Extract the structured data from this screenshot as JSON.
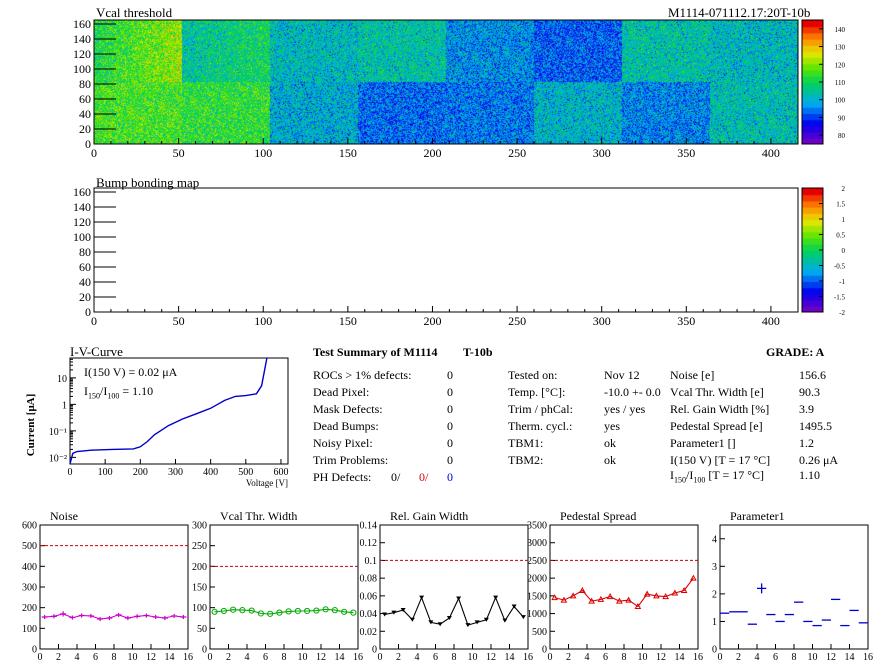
{
  "header": {
    "module_id": "M1114-071112.17:20T-10b"
  },
  "vcal_map": {
    "title": "Vcal threshold",
    "x_ticks": [
      "0",
      "50",
      "100",
      "150",
      "200",
      "250",
      "300",
      "350",
      "400"
    ],
    "y_ticks": [
      "0",
      "20",
      "40",
      "60",
      "80",
      "100",
      "120",
      "140",
      "160"
    ],
    "palette_ticks": [
      "80",
      "90",
      "100",
      "110",
      "120",
      "130",
      "140"
    ],
    "zlim": [
      78,
      143
    ],
    "roc_means": [
      [
        112,
        105,
        103,
        105,
        98,
        94,
        105,
        103
      ],
      [
        116,
        114,
        101,
        95,
        96,
        102,
        97,
        104
      ]
    ]
  },
  "bump_map": {
    "title": "Bump bonding map",
    "x_ticks": [
      "0",
      "50",
      "100",
      "150",
      "200",
      "250",
      "300",
      "350",
      "400"
    ],
    "y_ticks": [
      "0",
      "20",
      "40",
      "60",
      "80",
      "100",
      "120",
      "140",
      "160"
    ],
    "palette_ticks": [
      "-2",
      "-1.5",
      "-1",
      "-0.5",
      "0",
      "0.5",
      "1",
      "1.5",
      "2"
    ]
  },
  "iv": {
    "title": "I-V-Curve",
    "ylabel": "Current [μA]",
    "xlabel": "Voltage [V]",
    "x_ticks": [
      "0",
      "100",
      "200",
      "300",
      "400",
      "500",
      "600"
    ],
    "y_ticks": [
      "10⁻²",
      "10⁻¹",
      "1",
      "10"
    ],
    "ann_current": "I(150 V) = 0.02 μA",
    "ann_ratio_label": "I",
    "ann_ratio_sub1": "150",
    "ann_ratio_sub2": "100",
    "ann_ratio_value": "=  1.10"
  },
  "summary": {
    "title": "Test Summary of M1114",
    "tag": "T-10b",
    "grade": "GRADE:  A",
    "defects": [
      {
        "label": "ROCs > 1% defects:",
        "value": "0"
      },
      {
        "label": "Dead Pixel:",
        "value": "0"
      },
      {
        "label": "Mask Defects:",
        "value": "0"
      },
      {
        "label": "Dead Bumps:",
        "value": "0"
      },
      {
        "label": "Noisy Pixel:",
        "value": "0"
      },
      {
        "label": "Trim Problems:",
        "value": "0"
      }
    ],
    "ph_label": "PH Defects:",
    "ph_values": [
      "0/",
      "0/",
      "0"
    ],
    "conditions": [
      {
        "label": "Tested on:",
        "value": "Nov 12"
      },
      {
        "label": "Temp. [°C]:",
        "value": "-10.0 +- 0.0"
      },
      {
        "label": "Trim / phCal:",
        "value": "yes / yes"
      },
      {
        "label": "Therm. cycl.:",
        "value": "yes"
      },
      {
        "label": "TBM1:",
        "value": "ok"
      },
      {
        "label": "TBM2:",
        "value": "ok"
      }
    ],
    "results": [
      {
        "label": "Noise [e]",
        "value": "156.6"
      },
      {
        "label": "Vcal Thr. Width [e]",
        "value": "90.3"
      },
      {
        "label": "Rel. Gain Width [%]",
        "value": "3.9"
      },
      {
        "label": "Pedestal Spread [e]",
        "value": "1495.5"
      },
      {
        "label": "Parameter1 []",
        "value": "1.2"
      },
      {
        "label": "I(150 V) [T = 17 °C]",
        "value": "0.26 μA"
      }
    ],
    "ratio_label": "I",
    "ratio_sub1": "150",
    "ratio_sub2": "100",
    "ratio_tail": "[T = 17 °C]",
    "ratio_value": "1.10"
  },
  "colors": {
    "magenta": "#cc00cc",
    "green": "#00aa00",
    "black": "#000000",
    "red": "#dd0000",
    "blue": "#0000cc",
    "cut": "#cc0000"
  },
  "chart_data": [
    {
      "type": "line",
      "title": "Noise",
      "x": [
        0,
        1,
        2,
        3,
        4,
        5,
        6,
        7,
        8,
        9,
        10,
        11,
        12,
        13,
        14,
        15
      ],
      "values": [
        155,
        158,
        170,
        152,
        162,
        160,
        145,
        150,
        165,
        150,
        158,
        162,
        155,
        150,
        160,
        155
      ],
      "errors": [
        20,
        20,
        25,
        20,
        20,
        20,
        20,
        20,
        20,
        20,
        20,
        20,
        20,
        20,
        20,
        20
      ],
      "xlim": [
        0,
        16
      ],
      "ylim": [
        0,
        600
      ],
      "x_ticks": [
        "0",
        "2",
        "4",
        "6",
        "8",
        "10",
        "12",
        "14",
        "16"
      ],
      "y_ticks": [
        "0",
        "100",
        "200",
        "300",
        "400",
        "500",
        "600"
      ],
      "cut": 500,
      "color": "#cc00cc",
      "marker": "plus"
    },
    {
      "type": "line",
      "title": "Vcal Thr. Width",
      "x": [
        0,
        1,
        2,
        3,
        4,
        5,
        6,
        7,
        8,
        9,
        10,
        11,
        12,
        13,
        14,
        15
      ],
      "values": [
        90,
        92,
        95,
        94,
        93,
        86,
        85,
        88,
        91,
        92,
        92,
        93,
        96,
        94,
        90,
        88
      ],
      "xlim": [
        0,
        16
      ],
      "ylim": [
        0,
        300
      ],
      "x_ticks": [
        "0",
        "2",
        "4",
        "6",
        "8",
        "10",
        "12",
        "14",
        "16"
      ],
      "y_ticks": [
        "0",
        "50",
        "100",
        "150",
        "200",
        "250",
        "300"
      ],
      "cut": 200,
      "color": "#00aa00",
      "marker": "circle"
    },
    {
      "type": "line",
      "title": "Rel. Gain Width",
      "x": [
        0,
        1,
        2,
        3,
        4,
        5,
        6,
        7,
        8,
        9,
        10,
        11,
        12,
        13,
        14,
        15
      ],
      "values": [
        0.039,
        0.041,
        0.044,
        0.033,
        0.058,
        0.03,
        0.028,
        0.035,
        0.057,
        0.027,
        0.03,
        0.033,
        0.058,
        0.032,
        0.048,
        0.036
      ],
      "xlim": [
        0,
        16
      ],
      "ylim": [
        0,
        0.14
      ],
      "x_ticks": [
        "0",
        "2",
        "4",
        "6",
        "8",
        "10",
        "12",
        "14",
        "16"
      ],
      "y_ticks": [
        "0",
        "0.02",
        "0.04",
        "0.06",
        "0.08",
        "0.1",
        "0.12",
        "0.14"
      ],
      "cut": 0.1,
      "color": "#000000",
      "marker": "triangle"
    },
    {
      "type": "line",
      "title": "Pedestal Spread",
      "x": [
        0,
        1,
        2,
        3,
        4,
        5,
        6,
        7,
        8,
        9,
        10,
        11,
        12,
        13,
        14,
        15
      ],
      "values": [
        1450,
        1380,
        1500,
        1650,
        1350,
        1400,
        1480,
        1350,
        1380,
        1200,
        1550,
        1500,
        1480,
        1580,
        1650,
        2000
      ],
      "xlim": [
        0,
        16
      ],
      "ylim": [
        0,
        3500
      ],
      "x_ticks": [
        "0",
        "2",
        "4",
        "6",
        "8",
        "10",
        "12",
        "14",
        "16"
      ],
      "y_ticks": [
        "0",
        "500",
        "1000",
        "1500",
        "2000",
        "2500",
        "3000",
        "3500"
      ],
      "cut": 2500,
      "color": "#dd0000",
      "marker": "triangle-open"
    },
    {
      "type": "scatter",
      "title": "Parameter1",
      "x": [
        0,
        1,
        2,
        3,
        4,
        5,
        6,
        7,
        8,
        9,
        10,
        11,
        12,
        13,
        14,
        15
      ],
      "values": [
        1.3,
        1.35,
        1.35,
        0.9,
        2.2,
        1.25,
        1.0,
        1.25,
        1.7,
        1.0,
        0.85,
        1.05,
        1.8,
        0.85,
        1.4,
        0.95
      ],
      "xlim": [
        0,
        16
      ],
      "ylim": [
        0,
        4.5
      ],
      "x_ticks": [
        "0",
        "2",
        "4",
        "6",
        "8",
        "10",
        "12",
        "14",
        "16"
      ],
      "y_ticks": [
        "0",
        "1",
        "2",
        "3",
        "4"
      ],
      "color": "#0000cc",
      "marker": "hbar"
    }
  ]
}
